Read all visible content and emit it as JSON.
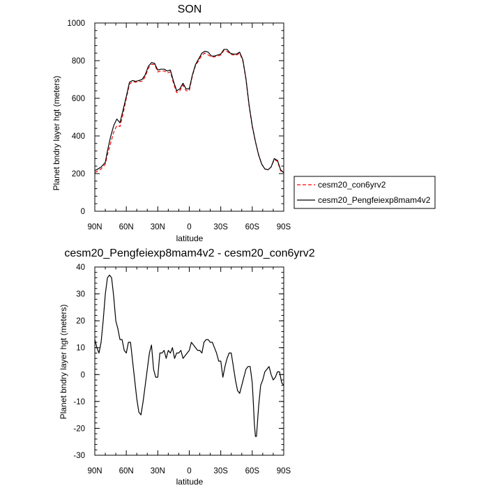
{
  "chart_data": [
    {
      "type": "line",
      "title": "SON",
      "xlabel": "latitude",
      "ylabel": "Planet bndry layer hgt (meters)",
      "xlim": [
        90,
        -90
      ],
      "ylim": [
        0,
        1000
      ],
      "x_ticks": [
        90,
        60,
        30,
        0,
        -30,
        -60,
        -90
      ],
      "x_ticklabels": [
        "90N",
        "60N",
        "30N",
        "0",
        "30S",
        "60S",
        "90S"
      ],
      "y_ticks": [
        0,
        200,
        400,
        600,
        800,
        1000
      ],
      "y_ticklabels": [
        "0",
        "200",
        "400",
        "600",
        "800",
        "1000"
      ],
      "legend_position": "right",
      "series": [
        {
          "name": "cesm20_con6yrv2",
          "color": "#ff0000",
          "dash": "dashed",
          "x": [
            90,
            87,
            84,
            80,
            78,
            75,
            72,
            69,
            66,
            63,
            60,
            57,
            54,
            51,
            48,
            45,
            42,
            39,
            36,
            33,
            30,
            27,
            24,
            21,
            18,
            15,
            12,
            9,
            6,
            3,
            0,
            -3,
            -6,
            -9,
            -12,
            -15,
            -18,
            -21,
            -24,
            -27,
            -30,
            -33,
            -36,
            -39,
            -42,
            -45,
            -48,
            -51,
            -54,
            -57,
            -60,
            -63,
            -66,
            -69,
            -72,
            -75,
            -78,
            -81,
            -84,
            -87,
            -90
          ],
          "y": [
            205,
            215,
            225,
            250,
            300,
            360,
            420,
            455,
            450,
            520,
            600,
            675,
            690,
            685,
            690,
            690,
            715,
            760,
            780,
            780,
            740,
            745,
            745,
            735,
            740,
            680,
            630,
            640,
            670,
            640,
            640,
            720,
            775,
            800,
            830,
            840,
            830,
            820,
            820,
            825,
            830,
            855,
            850,
            835,
            830,
            830,
            840,
            800,
            700,
            560,
            450,
            370,
            300,
            250,
            225,
            220,
            235,
            275,
            265,
            215,
            205
          ]
        },
        {
          "name": "cesm20_Pengfeiexp8mam4v2",
          "color": "#000000",
          "dash": "solid",
          "x": [
            90,
            87,
            84,
            80,
            78,
            75,
            72,
            69,
            66,
            63,
            60,
            57,
            54,
            51,
            48,
            45,
            42,
            39,
            36,
            33,
            30,
            27,
            24,
            21,
            18,
            15,
            12,
            9,
            6,
            3,
            0,
            -3,
            -6,
            -9,
            -12,
            -15,
            -18,
            -21,
            -24,
            -27,
            -30,
            -33,
            -36,
            -39,
            -42,
            -45,
            -48,
            -51,
            -54,
            -57,
            -60,
            -63,
            -66,
            -69,
            -72,
            -75,
            -78,
            -81,
            -84,
            -87,
            -90
          ],
          "y": [
            215,
            225,
            235,
            260,
            320,
            395,
            455,
            490,
            470,
            540,
            610,
            685,
            695,
            690,
            695,
            700,
            725,
            770,
            790,
            785,
            750,
            755,
            755,
            745,
            750,
            690,
            640,
            650,
            680,
            650,
            650,
            725,
            780,
            810,
            840,
            850,
            845,
            825,
            825,
            830,
            835,
            860,
            860,
            840,
            835,
            835,
            845,
            805,
            705,
            565,
            455,
            370,
            300,
            250,
            225,
            220,
            235,
            280,
            270,
            220,
            205
          ]
        }
      ]
    },
    {
      "type": "line",
      "title": "cesm20_Pengfeiexp8mam4v2 - cesm20_con6yrv2",
      "xlabel": "latitude",
      "ylabel": "Planet bndry layer hgt (meters)",
      "xlim": [
        90,
        -90
      ],
      "ylim": [
        -30,
        40
      ],
      "x_ticks": [
        90,
        60,
        30,
        0,
        -30,
        -60,
        -90
      ],
      "x_ticklabels": [
        "90N",
        "60N",
        "30N",
        "0",
        "30S",
        "60S",
        "90S"
      ],
      "y_ticks": [
        -30,
        -20,
        -10,
        0,
        10,
        20,
        30,
        40
      ],
      "y_ticklabels": [
        "-30",
        "-20",
        "-10",
        "0",
        "10",
        "20",
        "30",
        "40"
      ],
      "series": [
        {
          "color": "#000000",
          "dash": "solid",
          "x": [
            90,
            88,
            86,
            84,
            82,
            80,
            78,
            76,
            74,
            72,
            70,
            68,
            66,
            64,
            62,
            60,
            58,
            56,
            54,
            52,
            50,
            48,
            46,
            44,
            42,
            40,
            38,
            36,
            34,
            32,
            30,
            28,
            26,
            24,
            22,
            20,
            18,
            16,
            14,
            12,
            10,
            8,
            6,
            4,
            2,
            0,
            -2,
            -4,
            -6,
            -8,
            -10,
            -12,
            -14,
            -16,
            -18,
            -20,
            -22,
            -24,
            -26,
            -28,
            -30,
            -32,
            -34,
            -36,
            -38,
            -40,
            -42,
            -44,
            -46,
            -48,
            -50,
            -52,
            -54,
            -56,
            -58,
            -60,
            -61,
            -62,
            -63,
            -64,
            -66,
            -68,
            -70,
            -72,
            -74,
            -76,
            -78,
            -80,
            -82,
            -84,
            -86,
            -88,
            -90
          ],
          "y": [
            13,
            10,
            8,
            12,
            20,
            30,
            36,
            37,
            36,
            29,
            20,
            17,
            13,
            13,
            9,
            8,
            12,
            12,
            5,
            -2,
            -9,
            -14,
            -15,
            -10,
            -4,
            2,
            8,
            11,
            2,
            -1,
            -1,
            8,
            8,
            9,
            6,
            9,
            8,
            10,
            6,
            8,
            8,
            9,
            6,
            7,
            8,
            9,
            12,
            11,
            10,
            9,
            9,
            8,
            12,
            13,
            13,
            12,
            12,
            10,
            8,
            5,
            5,
            -1,
            3,
            6,
            8,
            8,
            3,
            -2,
            -6,
            -7,
            -4,
            -1,
            2,
            3,
            3,
            -3,
            -10,
            -18,
            -23,
            -23,
            -12,
            -4,
            -2,
            1,
            2,
            3,
            0,
            -2,
            -1,
            1,
            1,
            -3,
            -4
          ]
        }
      ]
    }
  ]
}
